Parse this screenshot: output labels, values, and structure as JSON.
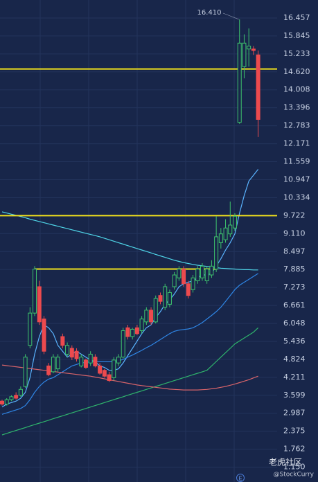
{
  "chart_data": {
    "type": "candlestick",
    "open": [
      3.4,
      3.3,
      3.45,
      3.6,
      3.6,
      3.9,
      5.3,
      6.4,
      7.3,
      6.2,
      4.6,
      4.4,
      4.5,
      5.6,
      5.0,
      5.2,
      5.1,
      4.6,
      4.8,
      4.7,
      4.9,
      4.6,
      4.45,
      4.3,
      4.2,
      4.7,
      4.9,
      5.9,
      5.6,
      5.9,
      5.8,
      6.1,
      6.5,
      6.1,
      7.0,
      6.6,
      6.7,
      7.3,
      7.6,
      7.9,
      7.4,
      7.2,
      7.5,
      7.6,
      7.5,
      7.7,
      7.9,
      8.8,
      8.9,
      9.1,
      9.3,
      12.9,
      14.8,
      15.4,
      15.4,
      15.2
    ],
    "high": [
      3.45,
      3.5,
      3.6,
      3.7,
      3.9,
      5.0,
      6.6,
      8.0,
      7.5,
      6.3,
      4.7,
      5.0,
      5.0,
      5.7,
      5.4,
      5.3,
      5.2,
      5.0,
      4.85,
      5.1,
      5.0,
      4.7,
      4.5,
      4.4,
      4.9,
      5.0,
      5.9,
      6.0,
      5.9,
      6.0,
      6.3,
      6.6,
      6.6,
      7.0,
      7.1,
      7.4,
      7.2,
      7.8,
      8.0,
      8.0,
      7.5,
      7.7,
      8.0,
      8.1,
      8.0,
      8.2,
      9.7,
      9.3,
      9.6,
      10.2,
      9.8,
      16.41,
      15.9,
      16.1,
      15.5,
      15.35
    ],
    "low": [
      3.25,
      3.25,
      3.4,
      3.45,
      3.55,
      3.85,
      5.2,
      6.3,
      6.0,
      5.0,
      4.25,
      4.35,
      4.4,
      5.2,
      4.9,
      4.8,
      4.75,
      4.55,
      4.5,
      4.6,
      4.55,
      4.3,
      4.2,
      4.05,
      4.1,
      4.6,
      4.85,
      5.5,
      5.5,
      5.65,
      5.7,
      6.0,
      6.0,
      6.05,
      6.7,
      6.5,
      6.6,
      7.2,
      7.5,
      7.3,
      6.9,
      7.1,
      7.4,
      7.5,
      7.4,
      7.6,
      7.8,
      8.6,
      8.8,
      9.0,
      9.2,
      12.85,
      14.4,
      14.8,
      15.2,
      12.4
    ],
    "close": [
      3.3,
      3.45,
      3.55,
      3.5,
      3.8,
      4.9,
      6.4,
      7.9,
      6.1,
      5.1,
      4.3,
      4.9,
      4.9,
      5.3,
      5.3,
      4.9,
      4.85,
      4.9,
      4.55,
      5.0,
      4.6,
      4.35,
      4.25,
      4.1,
      4.8,
      4.9,
      5.8,
      5.6,
      5.85,
      5.7,
      6.2,
      6.5,
      6.1,
      6.9,
      6.8,
      7.3,
      7.1,
      7.7,
      7.9,
      7.4,
      7.0,
      7.6,
      7.9,
      8.0,
      7.9,
      8.0,
      9.0,
      9.1,
      9.3,
      9.4,
      9.7,
      15.6,
      15.6,
      15.5,
      15.35,
      13.0
    ],
    "up_color": "#3ec46d",
    "down_color": "#ec4a4e",
    "series": [
      {
        "color": "#5ab4ff",
        "values": [
          3.2,
          3.3,
          3.35,
          3.4,
          3.5,
          3.7,
          4.2,
          5.0,
          5.6,
          6.0,
          5.9,
          5.7,
          5.3,
          5.1,
          4.9,
          5.0,
          5.1,
          5.0,
          4.9,
          4.8,
          4.75,
          4.6,
          4.55,
          4.45,
          4.45,
          4.5,
          4.7,
          4.95,
          5.2,
          5.45,
          5.7,
          5.9,
          6.0,
          6.25,
          6.45,
          6.7,
          6.85,
          7.05,
          7.3,
          7.4,
          7.45,
          7.5,
          7.6,
          7.7,
          7.7,
          7.75,
          8.0,
          8.25,
          8.55,
          8.8,
          9.1,
          9.8,
          10.4,
          10.9,
          11.1,
          11.3
        ]
      },
      {
        "color": "#2f86e6",
        "values": [
          2.95,
          3.0,
          3.05,
          3.1,
          3.15,
          3.25,
          3.45,
          3.7,
          3.9,
          4.05,
          4.15,
          4.2,
          4.3,
          4.4,
          4.5,
          4.6,
          4.65,
          4.7,
          4.72,
          4.74,
          4.76,
          4.75,
          4.75,
          4.74,
          4.75,
          4.78,
          4.82,
          4.9,
          4.97,
          5.05,
          5.13,
          5.22,
          5.3,
          5.4,
          5.5,
          5.6,
          5.7,
          5.78,
          5.82,
          5.84,
          5.86,
          5.9,
          5.98,
          6.08,
          6.2,
          6.32,
          6.45,
          6.6,
          6.8,
          7.0,
          7.2,
          7.35,
          7.45,
          7.55,
          7.65,
          7.75
        ]
      },
      {
        "color": "#2fb56c",
        "values": [
          2.25,
          2.3,
          2.35,
          2.4,
          2.45,
          2.5,
          2.55,
          2.6,
          2.65,
          2.7,
          2.75,
          2.8,
          2.85,
          2.9,
          2.95,
          3.0,
          3.05,
          3.1,
          3.15,
          3.2,
          3.25,
          3.3,
          3.35,
          3.4,
          3.45,
          3.5,
          3.55,
          3.6,
          3.65,
          3.7,
          3.75,
          3.8,
          3.85,
          3.9,
          3.95,
          4.0,
          4.05,
          4.1,
          4.15,
          4.2,
          4.25,
          4.3,
          4.35,
          4.4,
          4.45,
          4.6,
          4.75,
          4.9,
          5.05,
          5.2,
          5.35,
          5.45,
          5.55,
          5.65,
          5.75,
          5.9
        ]
      },
      {
        "color": "#d8646a",
        "values": [
          4.63,
          4.61,
          4.59,
          4.57,
          4.55,
          4.53,
          4.51,
          4.49,
          4.47,
          4.45,
          4.43,
          4.41,
          4.39,
          4.37,
          4.35,
          4.33,
          4.31,
          4.29,
          4.27,
          4.25,
          4.22,
          4.19,
          4.16,
          4.13,
          4.1,
          4.07,
          4.04,
          4.01,
          3.98,
          3.95,
          3.93,
          3.91,
          3.89,
          3.87,
          3.85,
          3.83,
          3.81,
          3.8,
          3.79,
          3.78,
          3.78,
          3.78,
          3.78,
          3.79,
          3.8,
          3.82,
          3.84,
          3.87,
          3.9,
          3.94,
          3.98,
          4.03,
          4.08,
          4.13,
          4.19,
          4.25
        ]
      },
      {
        "color": "#4fd6e8",
        "values": [
          9.85,
          9.81,
          9.77,
          9.73,
          9.69,
          9.65,
          9.6,
          9.56,
          9.52,
          9.48,
          9.44,
          9.4,
          9.36,
          9.32,
          9.28,
          9.24,
          9.2,
          9.16,
          9.12,
          9.08,
          9.04,
          9.0,
          8.95,
          8.9,
          8.85,
          8.8,
          8.75,
          8.7,
          8.65,
          8.6,
          8.55,
          8.5,
          8.45,
          8.4,
          8.35,
          8.3,
          8.25,
          8.2,
          8.16,
          8.12,
          8.09,
          8.06,
          8.03,
          8.01,
          7.99,
          7.97,
          7.95,
          7.93,
          7.92,
          7.91,
          7.9,
          7.89,
          7.88,
          7.88,
          7.87,
          7.87
        ]
      }
    ],
    "hlines": [
      {
        "value": 14.72
      },
      {
        "value": 9.72
      },
      {
        "value": 7.9,
        "from": 7,
        "to": 46
      }
    ],
    "hline_color": "#f2e21c",
    "max_label": {
      "value": 16.41,
      "label": "16.410"
    },
    "ylim": [
      0.644,
      17.07
    ],
    "yticks": [
      16.457,
      15.845,
      15.233,
      {
        "value": 14.62,
        "label": "14.620"
      },
      14.008,
      13.396,
      12.783,
      12.171,
      11.559,
      10.947,
      10.334,
      9.722,
      {
        "value": 9.11,
        "label": "9.110"
      },
      8.497,
      7.885,
      7.273,
      6.661,
      6.048,
      5.436,
      4.824,
      4.211,
      3.599,
      2.987,
      2.375,
      1.762,
      {
        "value": 1.15,
        "label": "1.150"
      }
    ],
    "grid": true,
    "marker": "E",
    "watermark": {
      "title": "老虎社区",
      "handle": "@StockCurry"
    }
  }
}
